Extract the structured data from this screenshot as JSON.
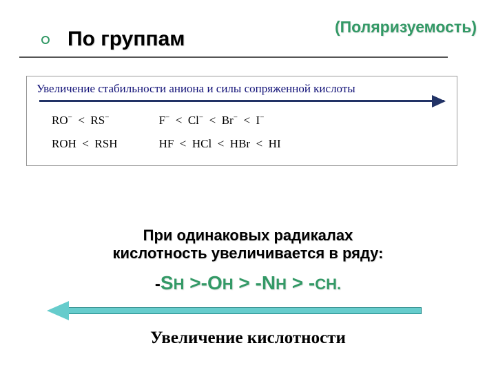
{
  "header": {
    "left_title": "По группам",
    "right_title": "(Поляризуемость)"
  },
  "box": {
    "title": "Увеличение стабильности аниона и силы сопряженной кислоты",
    "row1_left": "RO⁻  <  RS⁻",
    "row1_right": "F⁻  <  Cl⁻  <  Br⁻  <  I⁻",
    "row2_left": "ROH  <  RSH",
    "row2_right": "HF  <  HCl  <  HBr  <  HI"
  },
  "mid": {
    "line1": "При одинаковых радикалах",
    "line2": "кислотность  увеличивается в ряду:"
  },
  "series": {
    "s": "S",
    "h1": "H",
    "gt1": " >-",
    "o": "O",
    "h2": "H",
    "gt2": " > -",
    "n": "N",
    "h3": "H",
    "gt3": " > -",
    "c": "C",
    "h4": "H",
    "dot": "."
  },
  "bottom": "Увеличение кислотности",
  "colors": {
    "accent": "#339966",
    "box_title": "#111177",
    "arrow_dark": "#223366",
    "arrow_teal": "#66cccc"
  }
}
